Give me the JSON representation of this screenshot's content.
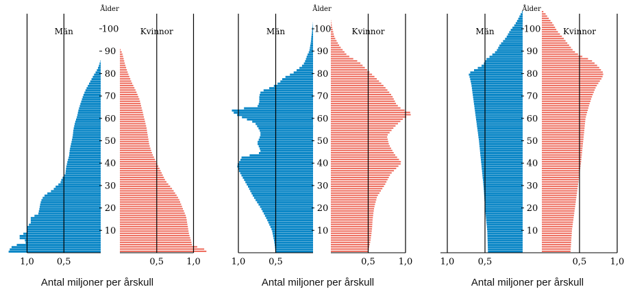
{
  "colors": {
    "male": "#0a86c6",
    "female": "#ee6e5f",
    "axis": "#000000"
  },
  "caption": "Antal miljoner per årskull",
  "chart_data": [
    {
      "type": "population-pyramid",
      "labels": {
        "male": "Män",
        "female": "Kvinnor",
        "age_axis": "Ålder"
      },
      "age_ticks": [
        "10",
        "20",
        "30",
        "40",
        "50",
        "60",
        "70",
        "80",
        "90",
        "100"
      ],
      "xticks": {
        "male": [
          "1,0",
          "0,5"
        ],
        "female": [
          "0,5",
          "1,0"
        ]
      },
      "xlim": [
        0,
        1.0
      ],
      "male_profile": [
        [
          0,
          1.25
        ],
        [
          1,
          1.25
        ],
        [
          2,
          1.22
        ],
        [
          3,
          1.2
        ],
        [
          5,
          0.96
        ],
        [
          6,
          1.1
        ],
        [
          8,
          1.1
        ],
        [
          9,
          1.0
        ],
        [
          12,
          1.0
        ],
        [
          13,
          0.95
        ],
        [
          16,
          0.95
        ],
        [
          17,
          0.85
        ],
        [
          20,
          0.83
        ],
        [
          22,
          0.82
        ],
        [
          24,
          0.8
        ],
        [
          26,
          0.75
        ],
        [
          28,
          0.65
        ],
        [
          30,
          0.6
        ],
        [
          31,
          0.55
        ],
        [
          33,
          0.53
        ],
        [
          35,
          0.48
        ],
        [
          38,
          0.47
        ],
        [
          41,
          0.45
        ],
        [
          43,
          0.43
        ],
        [
          46,
          0.42
        ],
        [
          49,
          0.4
        ],
        [
          52,
          0.38
        ],
        [
          55,
          0.37
        ],
        [
          58,
          0.35
        ],
        [
          61,
          0.32
        ],
        [
          64,
          0.3
        ],
        [
          67,
          0.27
        ],
        [
          70,
          0.24
        ],
        [
          73,
          0.2
        ],
        [
          76,
          0.15
        ],
        [
          79,
          0.1
        ],
        [
          81,
          0.06
        ],
        [
          83,
          0.03
        ],
        [
          85,
          0.01
        ],
        [
          86,
          0
        ]
      ],
      "female_profile": [
        [
          0,
          1.18
        ],
        [
          1,
          1.17
        ],
        [
          2,
          1.12
        ],
        [
          3,
          0.98
        ],
        [
          5,
          0.97
        ],
        [
          8,
          0.94
        ],
        [
          12,
          0.92
        ],
        [
          16,
          0.9
        ],
        [
          20,
          0.85
        ],
        [
          24,
          0.8
        ],
        [
          28,
          0.72
        ],
        [
          32,
          0.62
        ],
        [
          36,
          0.56
        ],
        [
          40,
          0.5
        ],
        [
          44,
          0.44
        ],
        [
          48,
          0.4
        ],
        [
          52,
          0.38
        ],
        [
          56,
          0.36
        ],
        [
          60,
          0.33
        ],
        [
          64,
          0.3
        ],
        [
          68,
          0.27
        ],
        [
          72,
          0.22
        ],
        [
          76,
          0.16
        ],
        [
          80,
          0.11
        ],
        [
          84,
          0.07
        ],
        [
          88,
          0.04
        ],
        [
          90,
          0.02
        ],
        [
          91,
          0
        ]
      ]
    },
    {
      "type": "population-pyramid",
      "labels": {
        "male": "Män",
        "female": "Kvinnor",
        "age_axis": "Ålder"
      },
      "age_ticks": [
        "10",
        "20",
        "30",
        "40",
        "50",
        "60",
        "70",
        "80",
        "90",
        "100"
      ],
      "xticks": {
        "male": [
          "1,0",
          "0,5"
        ],
        "female": [
          "0,5",
          "1,0"
        ]
      },
      "xlim": [
        0,
        1.0
      ],
      "male_profile": [
        [
          0,
          0.5
        ],
        [
          5,
          0.52
        ],
        [
          10,
          0.55
        ],
        [
          15,
          0.62
        ],
        [
          20,
          0.7
        ],
        [
          25,
          0.8
        ],
        [
          30,
          0.88
        ],
        [
          34,
          0.95
        ],
        [
          37,
          1.0
        ],
        [
          39,
          1.02
        ],
        [
          41,
          0.98
        ],
        [
          43,
          0.95
        ],
        [
          44,
          0.75
        ],
        [
          45,
          0.7
        ],
        [
          47,
          0.72
        ],
        [
          49,
          0.75
        ],
        [
          51,
          0.72
        ],
        [
          53,
          0.7
        ],
        [
          55,
          0.72
        ],
        [
          58,
          0.78
        ],
        [
          60,
          0.92
        ],
        [
          62,
          1.05
        ],
        [
          64,
          1.1
        ],
        [
          65,
          0.75
        ],
        [
          67,
          0.72
        ],
        [
          70,
          0.72
        ],
        [
          72,
          0.7
        ],
        [
          74,
          0.55
        ],
        [
          76,
          0.45
        ],
        [
          78,
          0.4
        ],
        [
          80,
          0.28
        ],
        [
          82,
          0.2
        ],
        [
          84,
          0.13
        ],
        [
          86,
          0.1
        ],
        [
          88,
          0.08
        ],
        [
          90,
          0.05
        ],
        [
          92,
          0.04
        ],
        [
          94,
          0.03
        ],
        [
          97,
          0.02
        ],
        [
          100,
          0.01
        ],
        [
          103,
          0
        ]
      ],
      "female_profile": [
        [
          0,
          0.5
        ],
        [
          5,
          0.53
        ],
        [
          10,
          0.55
        ],
        [
          15,
          0.56
        ],
        [
          20,
          0.58
        ],
        [
          25,
          0.62
        ],
        [
          30,
          0.72
        ],
        [
          35,
          0.8
        ],
        [
          40,
          0.95
        ],
        [
          44,
          0.85
        ],
        [
          48,
          0.78
        ],
        [
          52,
          0.75
        ],
        [
          56,
          0.85
        ],
        [
          60,
          0.98
        ],
        [
          62,
          1.1
        ],
        [
          64,
          0.95
        ],
        [
          66,
          0.88
        ],
        [
          70,
          0.82
        ],
        [
          74,
          0.72
        ],
        [
          78,
          0.6
        ],
        [
          82,
          0.47
        ],
        [
          85,
          0.38
        ],
        [
          88,
          0.22
        ],
        [
          92,
          0.12
        ],
        [
          96,
          0.05
        ],
        [
          100,
          0.02
        ],
        [
          104,
          0
        ]
      ]
    },
    {
      "type": "population-pyramid",
      "labels": {
        "male": "Män",
        "female": "Kvinnor",
        "age_axis": "Ålder"
      },
      "age_ticks": [
        "10",
        "20",
        "30",
        "40",
        "50",
        "60",
        "70",
        "80",
        "90",
        "100"
      ],
      "xticks": {
        "male": [
          "1,0",
          "0,5"
        ],
        "female": [
          "0,5",
          "1,0"
        ]
      },
      "xlim": [
        0,
        1.0
      ],
      "male_profile": [
        [
          0,
          0.46
        ],
        [
          10,
          0.47
        ],
        [
          20,
          0.5
        ],
        [
          30,
          0.52
        ],
        [
          40,
          0.55
        ],
        [
          50,
          0.58
        ],
        [
          60,
          0.62
        ],
        [
          70,
          0.66
        ],
        [
          75,
          0.68
        ],
        [
          78,
          0.7
        ],
        [
          80,
          0.72
        ],
        [
          82,
          0.62
        ],
        [
          84,
          0.52
        ],
        [
          86,
          0.5
        ],
        [
          88,
          0.42
        ],
        [
          90,
          0.35
        ],
        [
          93,
          0.3
        ],
        [
          96,
          0.22
        ],
        [
          99,
          0.17
        ],
        [
          102,
          0.1
        ],
        [
          105,
          0.05
        ],
        [
          107,
          0.02
        ],
        [
          108,
          0
        ]
      ],
      "female_profile": [
        [
          0,
          0.38
        ],
        [
          10,
          0.4
        ],
        [
          20,
          0.44
        ],
        [
          30,
          0.48
        ],
        [
          40,
          0.52
        ],
        [
          50,
          0.55
        ],
        [
          60,
          0.58
        ],
        [
          66,
          0.63
        ],
        [
          70,
          0.67
        ],
        [
          74,
          0.72
        ],
        [
          78,
          0.8
        ],
        [
          80,
          0.82
        ],
        [
          83,
          0.75
        ],
        [
          86,
          0.65
        ],
        [
          88,
          0.5
        ],
        [
          90,
          0.42
        ],
        [
          93,
          0.35
        ],
        [
          96,
          0.28
        ],
        [
          99,
          0.2
        ],
        [
          102,
          0.15
        ],
        [
          105,
          0.08
        ],
        [
          107,
          0.04
        ],
        [
          108,
          0
        ]
      ]
    }
  ]
}
